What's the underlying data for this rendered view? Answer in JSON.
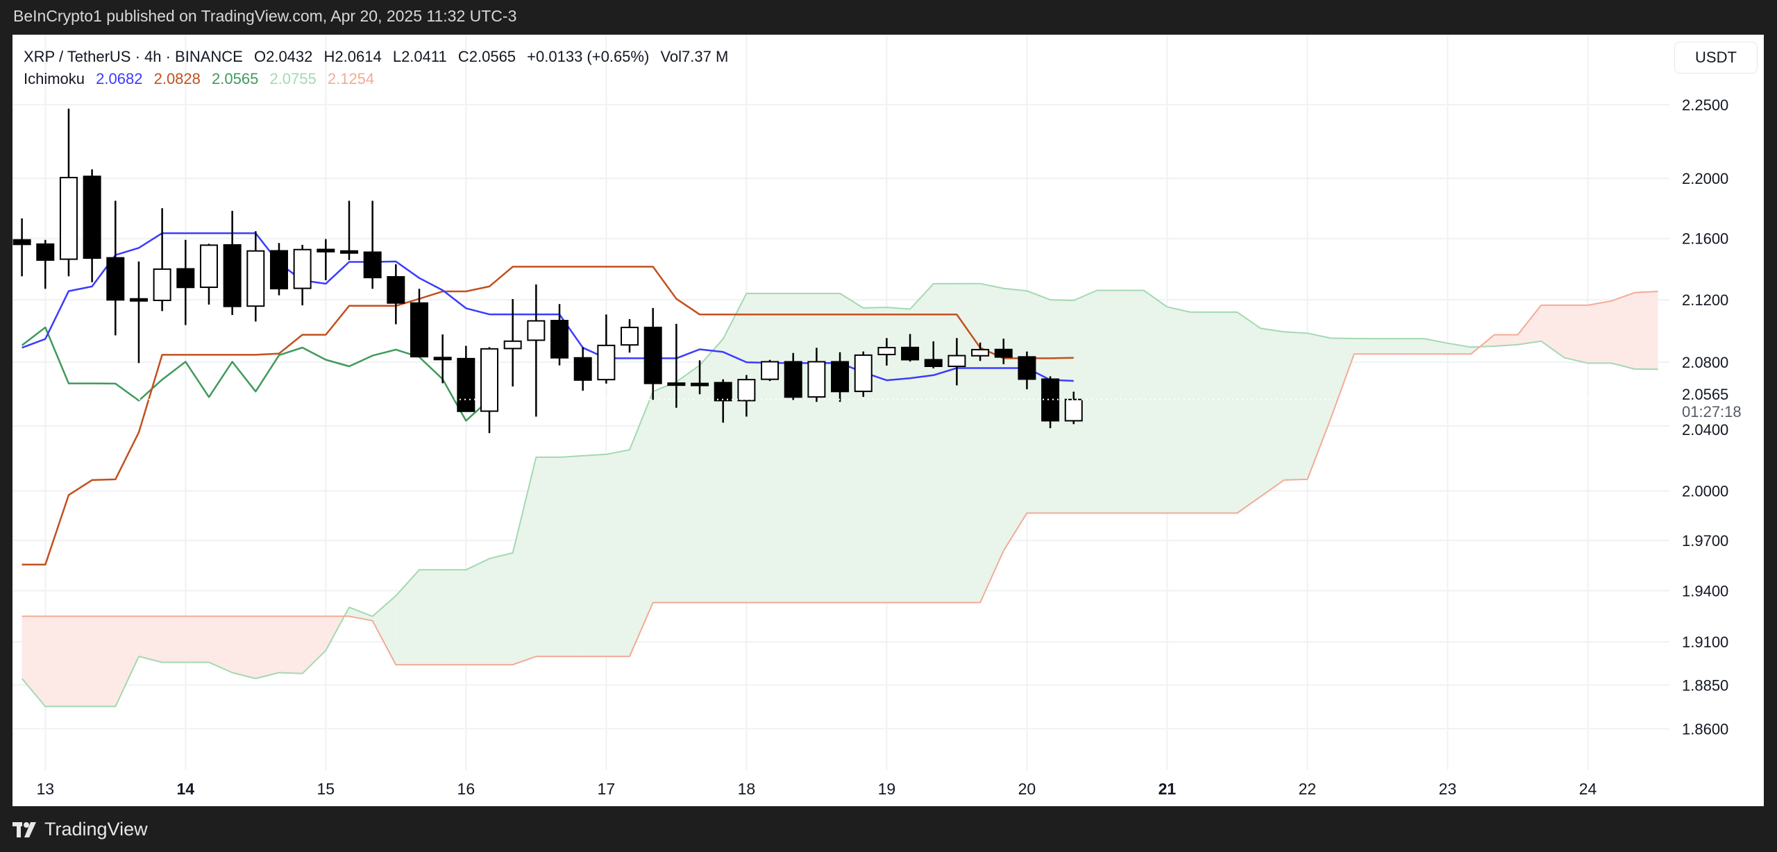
{
  "published": "BeInCrypto1 published on TradingView.com, Apr 20, 2025 11:32 UTC-3",
  "symbol": {
    "title": "XRP / TetherUS · 4h · BINANCE",
    "open": "O2.0432",
    "high": "H2.0614",
    "low": "L2.0411",
    "close": "C2.0565",
    "change": "+0.0133 (+0.65%)",
    "volume": "Vol7.37 M"
  },
  "indicator": {
    "name": "Ichimoku",
    "values": [
      {
        "label": "2.0682",
        "color": "#3b3bff"
      },
      {
        "label": "2.0828",
        "color": "#c2501e"
      },
      {
        "label": "2.0565",
        "color": "#3f9a5a"
      },
      {
        "label": "2.0755",
        "color": "#a3d9b1"
      },
      {
        "label": "2.1254",
        "color": "#f2ab97"
      }
    ]
  },
  "price_axis": {
    "currency": "USDT",
    "last_price": "2.0565",
    "countdown": "01:27:18"
  },
  "footer": {
    "brand": "TradingView"
  },
  "chart_data": {
    "type": "candlestick",
    "scale": "log",
    "grid": true,
    "ylim": [
      1.83,
      2.29
    ],
    "y_ticks": [
      "2.2500",
      "2.2000",
      "2.1600",
      "2.1200",
      "2.0800",
      "2.0400",
      "2.0000",
      "1.9700",
      "1.9400",
      "1.9100",
      "1.8850",
      "1.8600"
    ],
    "x_ticks": [
      {
        "label": "13",
        "bold": false
      },
      {
        "label": "14",
        "bold": true
      },
      {
        "label": "15",
        "bold": false
      },
      {
        "label": "16",
        "bold": false
      },
      {
        "label": "17",
        "bold": false
      },
      {
        "label": "18",
        "bold": false
      },
      {
        "label": "19",
        "bold": false
      },
      {
        "label": "20",
        "bold": false
      },
      {
        "label": "21",
        "bold": true
      },
      {
        "label": "22",
        "bold": false
      },
      {
        "label": "23",
        "bold": false
      },
      {
        "label": "24",
        "bold": false
      }
    ],
    "interval": "4h",
    "candles": [
      {
        "t": "Apr 12 20:00",
        "o": 2.1591,
        "h": 2.1733,
        "l": 2.1352,
        "c": 2.1561
      },
      {
        "t": "Apr 13 00:00",
        "o": 2.1563,
        "h": 2.1591,
        "l": 2.1271,
        "c": 2.1458
      },
      {
        "t": "Apr 13 04:00",
        "o": 2.1464,
        "h": 2.2472,
        "l": 2.1352,
        "c": 2.2005
      },
      {
        "t": "Apr 13 08:00",
        "o": 2.2013,
        "h": 2.206,
        "l": 2.1314,
        "c": 2.1471
      },
      {
        "t": "Apr 13 12:00",
        "o": 2.1473,
        "h": 2.185,
        "l": 2.0971,
        "c": 2.1199
      },
      {
        "t": "Apr 13 16:00",
        "o": 2.1206,
        "h": 2.1449,
        "l": 2.0795,
        "c": 2.1204
      },
      {
        "t": "Apr 13 20:00",
        "o": 2.1196,
        "h": 2.18,
        "l": 2.1127,
        "c": 2.1399
      },
      {
        "t": "Apr 14 00:00",
        "o": 2.1401,
        "h": 2.1591,
        "l": 2.1037,
        "c": 2.128
      },
      {
        "t": "Apr 14 04:00",
        "o": 2.1281,
        "h": 2.1565,
        "l": 2.1169,
        "c": 2.1556
      },
      {
        "t": "Apr 14 08:00",
        "o": 2.1558,
        "h": 2.1783,
        "l": 2.1102,
        "c": 2.1157
      },
      {
        "t": "Apr 14 12:00",
        "o": 2.1159,
        "h": 2.1648,
        "l": 2.106,
        "c": 2.1518
      },
      {
        "t": "Apr 14 16:00",
        "o": 2.1519,
        "h": 2.157,
        "l": 2.1229,
        "c": 2.1272
      },
      {
        "t": "Apr 14 20:00",
        "o": 2.1274,
        "h": 2.1558,
        "l": 2.1164,
        "c": 2.1527
      },
      {
        "t": "Apr 15 00:00",
        "o": 2.1528,
        "h": 2.1596,
        "l": 2.1327,
        "c": 2.1513
      },
      {
        "t": "Apr 15 04:00",
        "o": 2.1518,
        "h": 2.185,
        "l": 2.1458,
        "c": 2.1516
      },
      {
        "t": "Apr 15 08:00",
        "o": 2.151,
        "h": 2.185,
        "l": 2.1271,
        "c": 2.1344
      },
      {
        "t": "Apr 15 12:00",
        "o": 2.1349,
        "h": 2.1431,
        "l": 2.1042,
        "c": 2.1179
      },
      {
        "t": "Apr 15 16:00",
        "o": 2.1179,
        "h": 2.1271,
        "l": 2.0832,
        "c": 2.0835
      },
      {
        "t": "Apr 15 20:00",
        "o": 2.083,
        "h": 2.0977,
        "l": 2.0667,
        "c": 2.0828
      },
      {
        "t": "Apr 16 00:00",
        "o": 2.0823,
        "h": 2.0904,
        "l": 2.0488,
        "c": 2.0491
      },
      {
        "t": "Apr 16 04:00",
        "o": 2.0492,
        "h": 2.0896,
        "l": 2.0355,
        "c": 2.0885
      },
      {
        "t": "Apr 16 08:00",
        "o": 2.0887,
        "h": 2.1205,
        "l": 2.0647,
        "c": 2.0934
      },
      {
        "t": "Apr 16 12:00",
        "o": 2.094,
        "h": 2.1299,
        "l": 2.0458,
        "c": 2.1064
      },
      {
        "t": "Apr 16 16:00",
        "o": 2.1066,
        "h": 2.1172,
        "l": 2.078,
        "c": 2.0828
      },
      {
        "t": "Apr 16 20:00",
        "o": 2.0828,
        "h": 2.0896,
        "l": 2.062,
        "c": 2.0687
      },
      {
        "t": "Apr 17 00:00",
        "o": 2.069,
        "h": 2.1105,
        "l": 2.0665,
        "c": 2.0907
      },
      {
        "t": "Apr 17 04:00",
        "o": 2.091,
        "h": 2.1075,
        "l": 2.0861,
        "c": 2.1022
      },
      {
        "t": "Apr 17 08:00",
        "o": 2.1022,
        "h": 2.1147,
        "l": 2.0563,
        "c": 2.0666
      },
      {
        "t": "Apr 17 12:00",
        "o": 2.0668,
        "h": 2.1045,
        "l": 2.0513,
        "c": 2.0666
      },
      {
        "t": "Apr 17 16:00",
        "o": 2.0666,
        "h": 2.0812,
        "l": 2.0598,
        "c": 2.0665
      },
      {
        "t": "Apr 17 20:00",
        "o": 2.0671,
        "h": 2.0692,
        "l": 2.042,
        "c": 2.0558
      },
      {
        "t": "Apr 18 00:00",
        "o": 2.0558,
        "h": 2.0719,
        "l": 2.0458,
        "c": 2.069
      },
      {
        "t": "Apr 18 04:00",
        "o": 2.0692,
        "h": 2.0815,
        "l": 2.0681,
        "c": 2.0803
      },
      {
        "t": "Apr 18 08:00",
        "o": 2.0803,
        "h": 2.0859,
        "l": 2.0562,
        "c": 2.058
      },
      {
        "t": "Apr 18 12:00",
        "o": 2.0581,
        "h": 2.0892,
        "l": 2.055,
        "c": 2.0803
      },
      {
        "t": "Apr 18 16:00",
        "o": 2.0803,
        "h": 2.0864,
        "l": 2.055,
        "c": 2.0615
      },
      {
        "t": "Apr 18 20:00",
        "o": 2.0616,
        "h": 2.0868,
        "l": 2.0581,
        "c": 2.0845
      },
      {
        "t": "Apr 19 00:00",
        "o": 2.0849,
        "h": 2.0954,
        "l": 2.0779,
        "c": 2.0893
      },
      {
        "t": "Apr 19 04:00",
        "o": 2.0894,
        "h": 2.098,
        "l": 2.0804,
        "c": 2.0816
      },
      {
        "t": "Apr 19 08:00",
        "o": 2.0816,
        "h": 2.0933,
        "l": 2.0761,
        "c": 2.0774
      },
      {
        "t": "Apr 19 12:00",
        "o": 2.0774,
        "h": 2.0954,
        "l": 2.0654,
        "c": 2.0842
      },
      {
        "t": "Apr 19 16:00",
        "o": 2.0841,
        "h": 2.0925,
        "l": 2.0808,
        "c": 2.088
      },
      {
        "t": "Apr 19 20:00",
        "o": 2.0881,
        "h": 2.095,
        "l": 2.0788,
        "c": 2.0833
      },
      {
        "t": "Apr 20 00:00",
        "o": 2.0834,
        "h": 2.0868,
        "l": 2.0629,
        "c": 2.0693
      },
      {
        "t": "Apr 20 04:00",
        "o": 2.0693,
        "h": 2.0711,
        "l": 2.0386,
        "c": 2.0432
      },
      {
        "t": "Apr 20 08:00",
        "o": 2.0432,
        "h": 2.0614,
        "l": 2.0411,
        "c": 2.0565
      }
    ],
    "ichimoku": {
      "conversion_line": [
        2.0892,
        2.0948,
        2.1256,
        2.1286,
        2.1491,
        2.1538,
        2.1635,
        2.1635,
        2.1635,
        2.1635,
        2.1635,
        2.1438,
        2.1326,
        2.1304,
        2.1446,
        2.1446,
        2.1449,
        2.1341,
        2.1262,
        2.1145,
        2.1106,
        2.1106,
        2.1106,
        2.1106,
        2.0892,
        2.0825,
        2.0825,
        2.0825,
        2.0825,
        2.0882,
        2.0865,
        2.08,
        2.0796,
        2.0795,
        2.0795,
        2.0795,
        2.0736,
        2.0686,
        2.0699,
        2.0718,
        2.0763,
        2.0763,
        2.0763,
        2.0763,
        2.0688,
        2.0682
      ],
      "base_line": [
        1.9555,
        1.9555,
        1.9974,
        2.0066,
        2.007,
        2.036,
        2.0847,
        2.0847,
        2.0847,
        2.0847,
        2.0847,
        2.0855,
        2.0975,
        2.0975,
        2.1161,
        2.1161,
        2.1161,
        2.1206,
        2.1254,
        2.1254,
        2.1286,
        2.1415,
        2.1415,
        2.1415,
        2.1415,
        2.1415,
        2.1415,
        2.1415,
        2.1206,
        2.1105,
        2.1105,
        2.1105,
        2.1105,
        2.1105,
        2.1105,
        2.1105,
        2.1105,
        2.1105,
        2.1105,
        2.1105,
        2.1105,
        2.0892,
        2.0825,
        2.0825,
        2.0825,
        2.0828
      ],
      "lagging_span": [
        2.0907,
        2.1022,
        2.0666,
        2.0666,
        2.0665,
        2.0558,
        2.069,
        2.0803,
        2.058,
        2.0803,
        2.0615,
        2.0845,
        2.0893,
        2.0816,
        2.0774,
        2.0842,
        2.088,
        2.0833,
        2.0693,
        2.0432,
        2.0565
      ],
      "leading_span_a": [
        1.8887,
        1.8727,
        1.8727,
        1.8727,
        1.8727,
        1.9015,
        1.8981,
        1.8981,
        1.8981,
        1.8921,
        1.8887,
        1.8921,
        1.8916,
        1.9049,
        1.9302,
        1.9249,
        1.937,
        1.9524,
        1.9524,
        1.9524,
        1.9591,
        1.9625,
        2.0206,
        2.0206,
        2.0215,
        2.0224,
        2.0252,
        2.0615,
        2.0676,
        2.0781,
        2.0949,
        2.1241,
        2.1241,
        2.1241,
        2.1241,
        2.1241,
        2.1147,
        2.1151,
        2.114,
        2.1304,
        2.1304,
        2.1305,
        2.1274,
        2.1258,
        2.12,
        2.1196,
        2.1261,
        2.1261,
        2.1261,
        2.1154,
        2.112,
        2.112,
        2.112,
        2.1016,
        2.0994,
        2.0985,
        2.0953,
        2.0951,
        2.095,
        2.095,
        2.095,
        2.0921,
        2.0896,
        2.0902,
        2.0912,
        2.0934,
        2.0828,
        2.0794,
        2.0794,
        2.0757,
        2.0755
      ],
      "leading_span_b": [
        1.9249,
        1.9249,
        1.9249,
        1.9249,
        1.9249,
        1.9249,
        1.9249,
        1.9249,
        1.9249,
        1.9249,
        1.9249,
        1.9249,
        1.9249,
        1.9249,
        1.9249,
        1.9223,
        1.8967,
        1.8967,
        1.8967,
        1.8967,
        1.8967,
        1.8967,
        1.9015,
        1.9015,
        1.9015,
        1.9015,
        1.9015,
        1.933,
        1.933,
        1.933,
        1.933,
        1.933,
        1.933,
        1.933,
        1.933,
        1.933,
        1.933,
        1.933,
        1.933,
        1.933,
        1.933,
        1.933,
        1.9637,
        1.9865,
        1.9865,
        1.9865,
        1.9865,
        1.9865,
        1.9865,
        1.9865,
        1.9865,
        1.9865,
        1.9865,
        1.9965,
        2.0066,
        2.007,
        2.0445,
        2.0852,
        2.0852,
        2.0852,
        2.0852,
        2.0852,
        2.0852,
        2.0975,
        2.0975,
        2.1165,
        2.1165,
        2.1165,
        2.1192,
        2.1246,
        2.1254
      ],
      "colors": {
        "conversion_line": "#3b3bff",
        "base_line": "#c2501e",
        "lagging_span": "#3f9a5a",
        "leading_span_a": "#a3d9b1",
        "leading_span_b": "#f2ab97",
        "cloud_bull": "#e9f4ea",
        "cloud_bear": "#fde9e6"
      }
    },
    "candle_colors": {
      "up_fill": "#ffffff",
      "down_fill": "#000000",
      "outline": "#000000"
    }
  }
}
